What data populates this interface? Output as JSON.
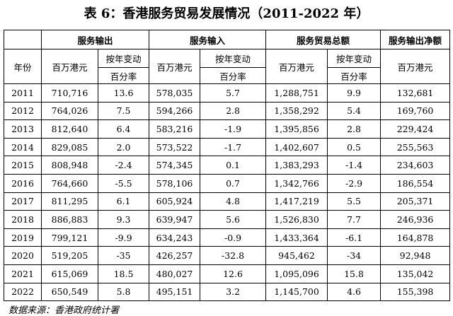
{
  "title": "表 6：香港服务贸易发展情况（2011-2022 年）",
  "header": {
    "year": "年份",
    "groups": [
      "服务输出",
      "服务输入",
      "服务贸易总额",
      "服务输出净额"
    ],
    "units": [
      "百万港元",
      "百万港元",
      "百万港元",
      "百万港元"
    ],
    "change": [
      "按年变动",
      "按年变动",
      "按年变动"
    ],
    "percent": [
      "百分率",
      "百分率",
      "百分率"
    ]
  },
  "table": {
    "rows": [
      [
        "2011",
        "710,716",
        "13.6",
        "578,035",
        "5.7",
        "1,288,751",
        "9.9",
        "132,681"
      ],
      [
        "2012",
        "764,026",
        "7.5",
        "594,266",
        "2.8",
        "1,358,292",
        "5.4",
        "169,760"
      ],
      [
        "2013",
        "812,640",
        "6.4",
        "583,216",
        "-1.9",
        "1,395,856",
        "2.8",
        "229,424"
      ],
      [
        "2014",
        "829,085",
        "2.0",
        "573,522",
        "-1.7",
        "1,402,607",
        "0.5",
        "255,563"
      ],
      [
        "2015",
        "808,948",
        "-2.4",
        "574,345",
        "0.1",
        "1,383,293",
        "-1.4",
        "234,603"
      ],
      [
        "2016",
        "764,660",
        "-5.5",
        "578,106",
        "0.7",
        "1,342,766",
        "-2.9",
        "186,554"
      ],
      [
        "2017",
        "811,295",
        "6.1",
        "605,924",
        "4.8",
        "1,417,219",
        "5.5",
        "205,371"
      ],
      [
        "2018",
        "886,883",
        "9.3",
        "639,947",
        "5.6",
        "1,526,830",
        "7.7",
        "246,936"
      ],
      [
        "2019",
        "799,121",
        "-9.9",
        "634,243",
        "-0.9",
        "1,433,364",
        "-6.1",
        "164,878"
      ],
      [
        "2020",
        "519,205",
        "-35",
        "426,257",
        "-32.8",
        "945,462",
        "-34",
        "92,948"
      ],
      [
        "2021",
        "615,069",
        "18.5",
        "480,027",
        "12.6",
        "1,095,096",
        "15.8",
        "135,042"
      ],
      [
        "2022",
        "650,549",
        "5.8",
        "495,151",
        "3.2",
        "1,145,700",
        "4.6",
        "155,398"
      ]
    ]
  },
  "source": "数据来源：香港政府统计署"
}
